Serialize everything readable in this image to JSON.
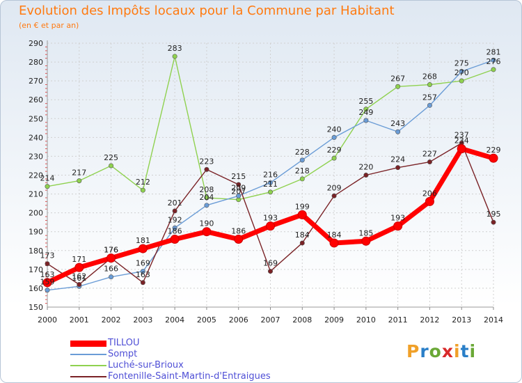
{
  "header": {
    "title": "Evolution des Impôts locaux pour la Commune par Habitant",
    "subtitle": "(en € et par an)"
  },
  "chart_data": {
    "type": "line",
    "title": "Evolution des Impôts locaux pour la Commune par Habitant",
    "subtitle": "(en € et par an)",
    "x": [
      2000,
      2001,
      2002,
      2003,
      2004,
      2005,
      2006,
      2007,
      2008,
      2009,
      2010,
      2011,
      2012,
      2013,
      2014
    ],
    "ylim": [
      150,
      290
    ],
    "yticks": [
      150,
      160,
      170,
      180,
      190,
      200,
      210,
      220,
      230,
      240,
      250,
      260,
      270,
      280,
      290
    ],
    "grid": true,
    "legend_position": "bottom-left",
    "series": [
      {
        "name": "Luché-sur-Brioux",
        "color": "#8fd14f",
        "values": [
          214,
          217,
          225,
          212,
          283,
          208,
          207,
          211,
          218,
          229,
          255,
          267,
          268,
          270,
          276
        ]
      },
      {
        "name": "Sompt",
        "color": "#6a9cd6",
        "values": [
          159,
          161,
          166,
          169,
          192,
          204,
          209,
          216,
          228,
          240,
          249,
          243,
          257,
          275,
          281
        ]
      },
      {
        "name": "Fontenille-Saint-Martin-d'Entraigues",
        "color": "#7a2226",
        "values": [
          173,
          162,
          176,
          163,
          201,
          223,
          215,
          169,
          184,
          209,
          220,
          224,
          227,
          237,
          195
        ]
      },
      {
        "name": "TILLOU",
        "color": "#ff0000",
        "values": [
          163,
          171,
          176,
          181,
          186,
          190,
          186,
          193,
          199,
          184,
          185,
          193,
          206,
          234,
          229
        ]
      }
    ]
  },
  "legend": {
    "items": [
      {
        "label": "TILLOU",
        "color": "#ff0000"
      },
      {
        "label": "Sompt",
        "color": "#6a9cd6"
      },
      {
        "label": "Luché-sur-Brioux",
        "color": "#8fd14f"
      },
      {
        "label": "Fontenille-Saint-Martin-d'Entraigues",
        "color": "#7a2226"
      }
    ]
  },
  "logo": {
    "letters": [
      "P",
      "r",
      "o",
      "x",
      "i",
      "t",
      "i"
    ],
    "colors": [
      "#f0a028",
      "#2a7fc8",
      "#6aa836",
      "#d82a2a",
      "#f0a028",
      "#2a7fc8",
      "#6aa836"
    ]
  }
}
